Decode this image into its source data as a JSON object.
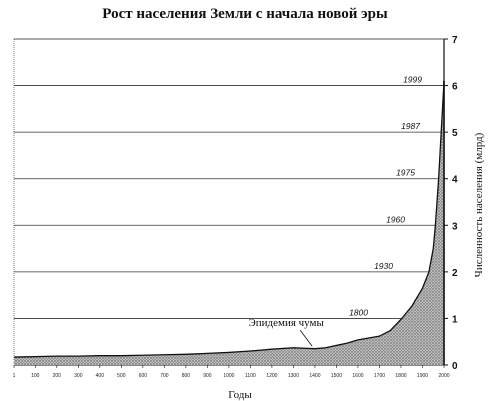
{
  "chart_data": {
    "type": "area",
    "title": "Рост населения Земли с начала новой эры",
    "xlabel": "Годы",
    "ylabel": "Численность населения (млрд)",
    "xlim": [
      1,
      2000
    ],
    "ylim": [
      0,
      7
    ],
    "x_ticks": [
      1,
      100,
      200,
      300,
      400,
      500,
      600,
      700,
      800,
      900,
      1000,
      1100,
      1200,
      1300,
      1400,
      1500,
      1600,
      1700,
      1800,
      1900,
      2000
    ],
    "y_ticks": [
      0,
      1,
      2,
      3,
      4,
      5,
      6,
      7
    ],
    "grid": "horizontal",
    "series": [
      {
        "x": [
          1,
          100,
          200,
          300,
          400,
          500,
          600,
          700,
          800,
          900,
          1000,
          1100,
          1200,
          1300,
          1350,
          1400,
          1450,
          1500,
          1550,
          1600,
          1650,
          1700,
          1750,
          1800,
          1850,
          1900,
          1930,
          1950,
          1960,
          1975,
          1987,
          1999,
          2000
        ],
        "y": [
          0.17,
          0.18,
          0.19,
          0.19,
          0.2,
          0.2,
          0.21,
          0.22,
          0.23,
          0.25,
          0.27,
          0.3,
          0.34,
          0.37,
          0.36,
          0.35,
          0.37,
          0.42,
          0.47,
          0.54,
          0.58,
          0.62,
          0.74,
          0.98,
          1.26,
          1.65,
          2.0,
          2.5,
          3.0,
          4.0,
          5.0,
          6.0,
          6.1
        ]
      }
    ],
    "year_markers": [
      {
        "label": "1800",
        "value": 1
      },
      {
        "label": "1930",
        "value": 2
      },
      {
        "label": "1960",
        "value": 3
      },
      {
        "label": "1975",
        "value": 4
      },
      {
        "label": "1987",
        "value": 5
      },
      {
        "label": "1999",
        "value": 6
      }
    ],
    "annotations": [
      {
        "text": "Эпидемия чумы",
        "x": 1350,
        "y": 0.36
      }
    ]
  }
}
